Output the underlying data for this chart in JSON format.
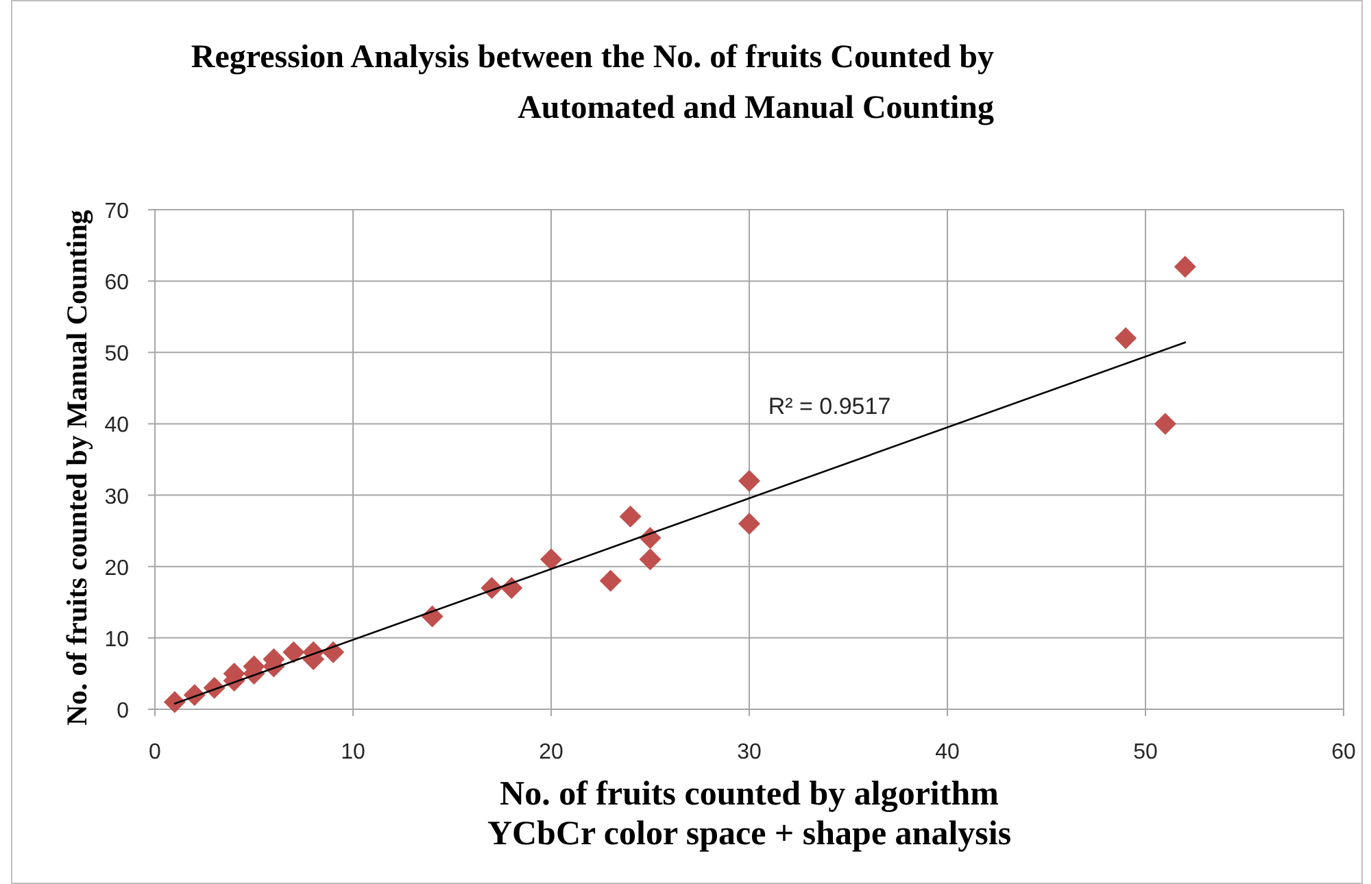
{
  "chart_data": {
    "type": "scatter",
    "title": "Regression Analysis between the No. of fruits Counted by Automated and Manual Counting",
    "xlabel": "No. of fruits counted by algorithm YCbCr color space + shape analysis",
    "ylabel": "No. of fruits counted by Manual Counting",
    "xlim": [
      0,
      60
    ],
    "xticks": [
      0,
      10,
      20,
      30,
      40,
      50,
      60
    ],
    "ylim": [
      0,
      70
    ],
    "yticks": [
      0,
      10,
      20,
      30,
      40,
      50,
      60,
      70
    ],
    "grid": true,
    "series": [
      {
        "color": "#c0504d",
        "marker": "diamond",
        "x": [
          1,
          2,
          3,
          4,
          4,
          5,
          5,
          6,
          6,
          7,
          8,
          8,
          9,
          14,
          17,
          18,
          20,
          23,
          24,
          25,
          25,
          30,
          30,
          49,
          51,
          52
        ],
        "values": [
          1,
          2,
          3,
          4,
          5,
          5,
          6,
          6,
          7,
          8,
          7,
          8,
          8,
          13,
          17,
          17,
          21,
          18,
          27,
          24,
          21,
          32,
          26,
          52,
          40,
          62
        ]
      },
      {
        "type": "line",
        "color": "#000000",
        "x": [
          1,
          52
        ],
        "values": [
          0.8,
          51.4
        ]
      }
    ],
    "annotations": [
      "R² = 0.9517"
    ]
  }
}
